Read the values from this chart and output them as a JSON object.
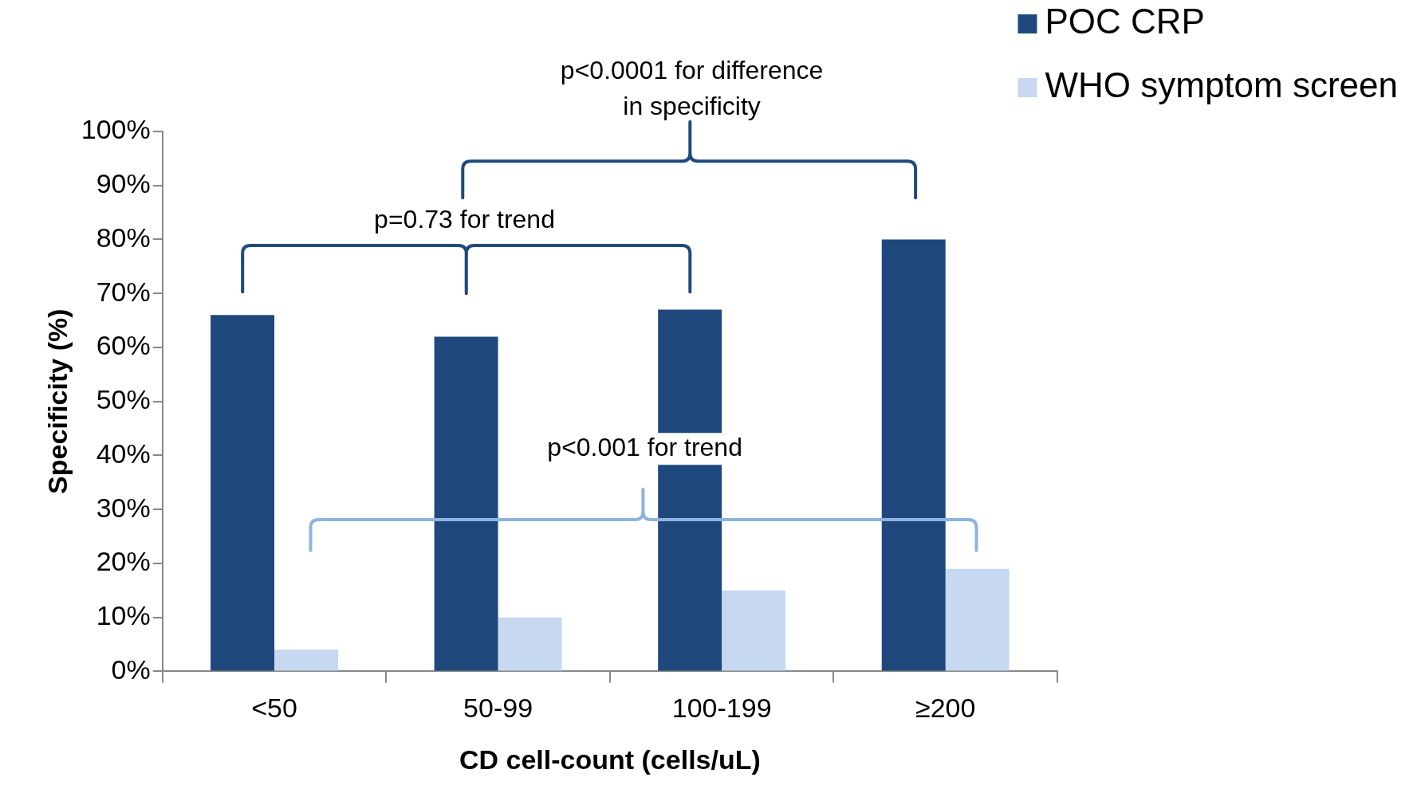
{
  "chart_data": {
    "type": "bar",
    "xlabel": "CD cell-count (cells/uL)",
    "ylabel": "Specificity (%)",
    "categories": [
      "<50",
      "50-99",
      "100-199",
      "≥200"
    ],
    "series": [
      {
        "name": "POC CRP",
        "color": "#1f497d",
        "values": [
          66,
          62,
          67,
          80
        ]
      },
      {
        "name": "WHO symptom screen",
        "color": "#c6d9f1",
        "values": [
          4,
          10,
          15,
          19
        ]
      }
    ],
    "ylim": [
      0,
      100
    ],
    "yticks": [
      {
        "value": 0,
        "label": "0%"
      },
      {
        "value": 10,
        "label": "10%"
      },
      {
        "value": 20,
        "label": "20%"
      },
      {
        "value": 30,
        "label": "30%"
      },
      {
        "value": 40,
        "label": "40%"
      },
      {
        "value": 50,
        "label": "50%"
      },
      {
        "value": 60,
        "label": "60%"
      },
      {
        "value": 70,
        "label": "70%"
      },
      {
        "value": 80,
        "label": "80%"
      },
      {
        "value": 90,
        "label": "90%"
      },
      {
        "value": 100,
        "label": "100%"
      }
    ],
    "grid": false,
    "legend": "top right",
    "annotations": [
      "p=0.73 for trend",
      "p<0.0001 for difference\nin specificity",
      "p<0.001 for trend"
    ]
  }
}
